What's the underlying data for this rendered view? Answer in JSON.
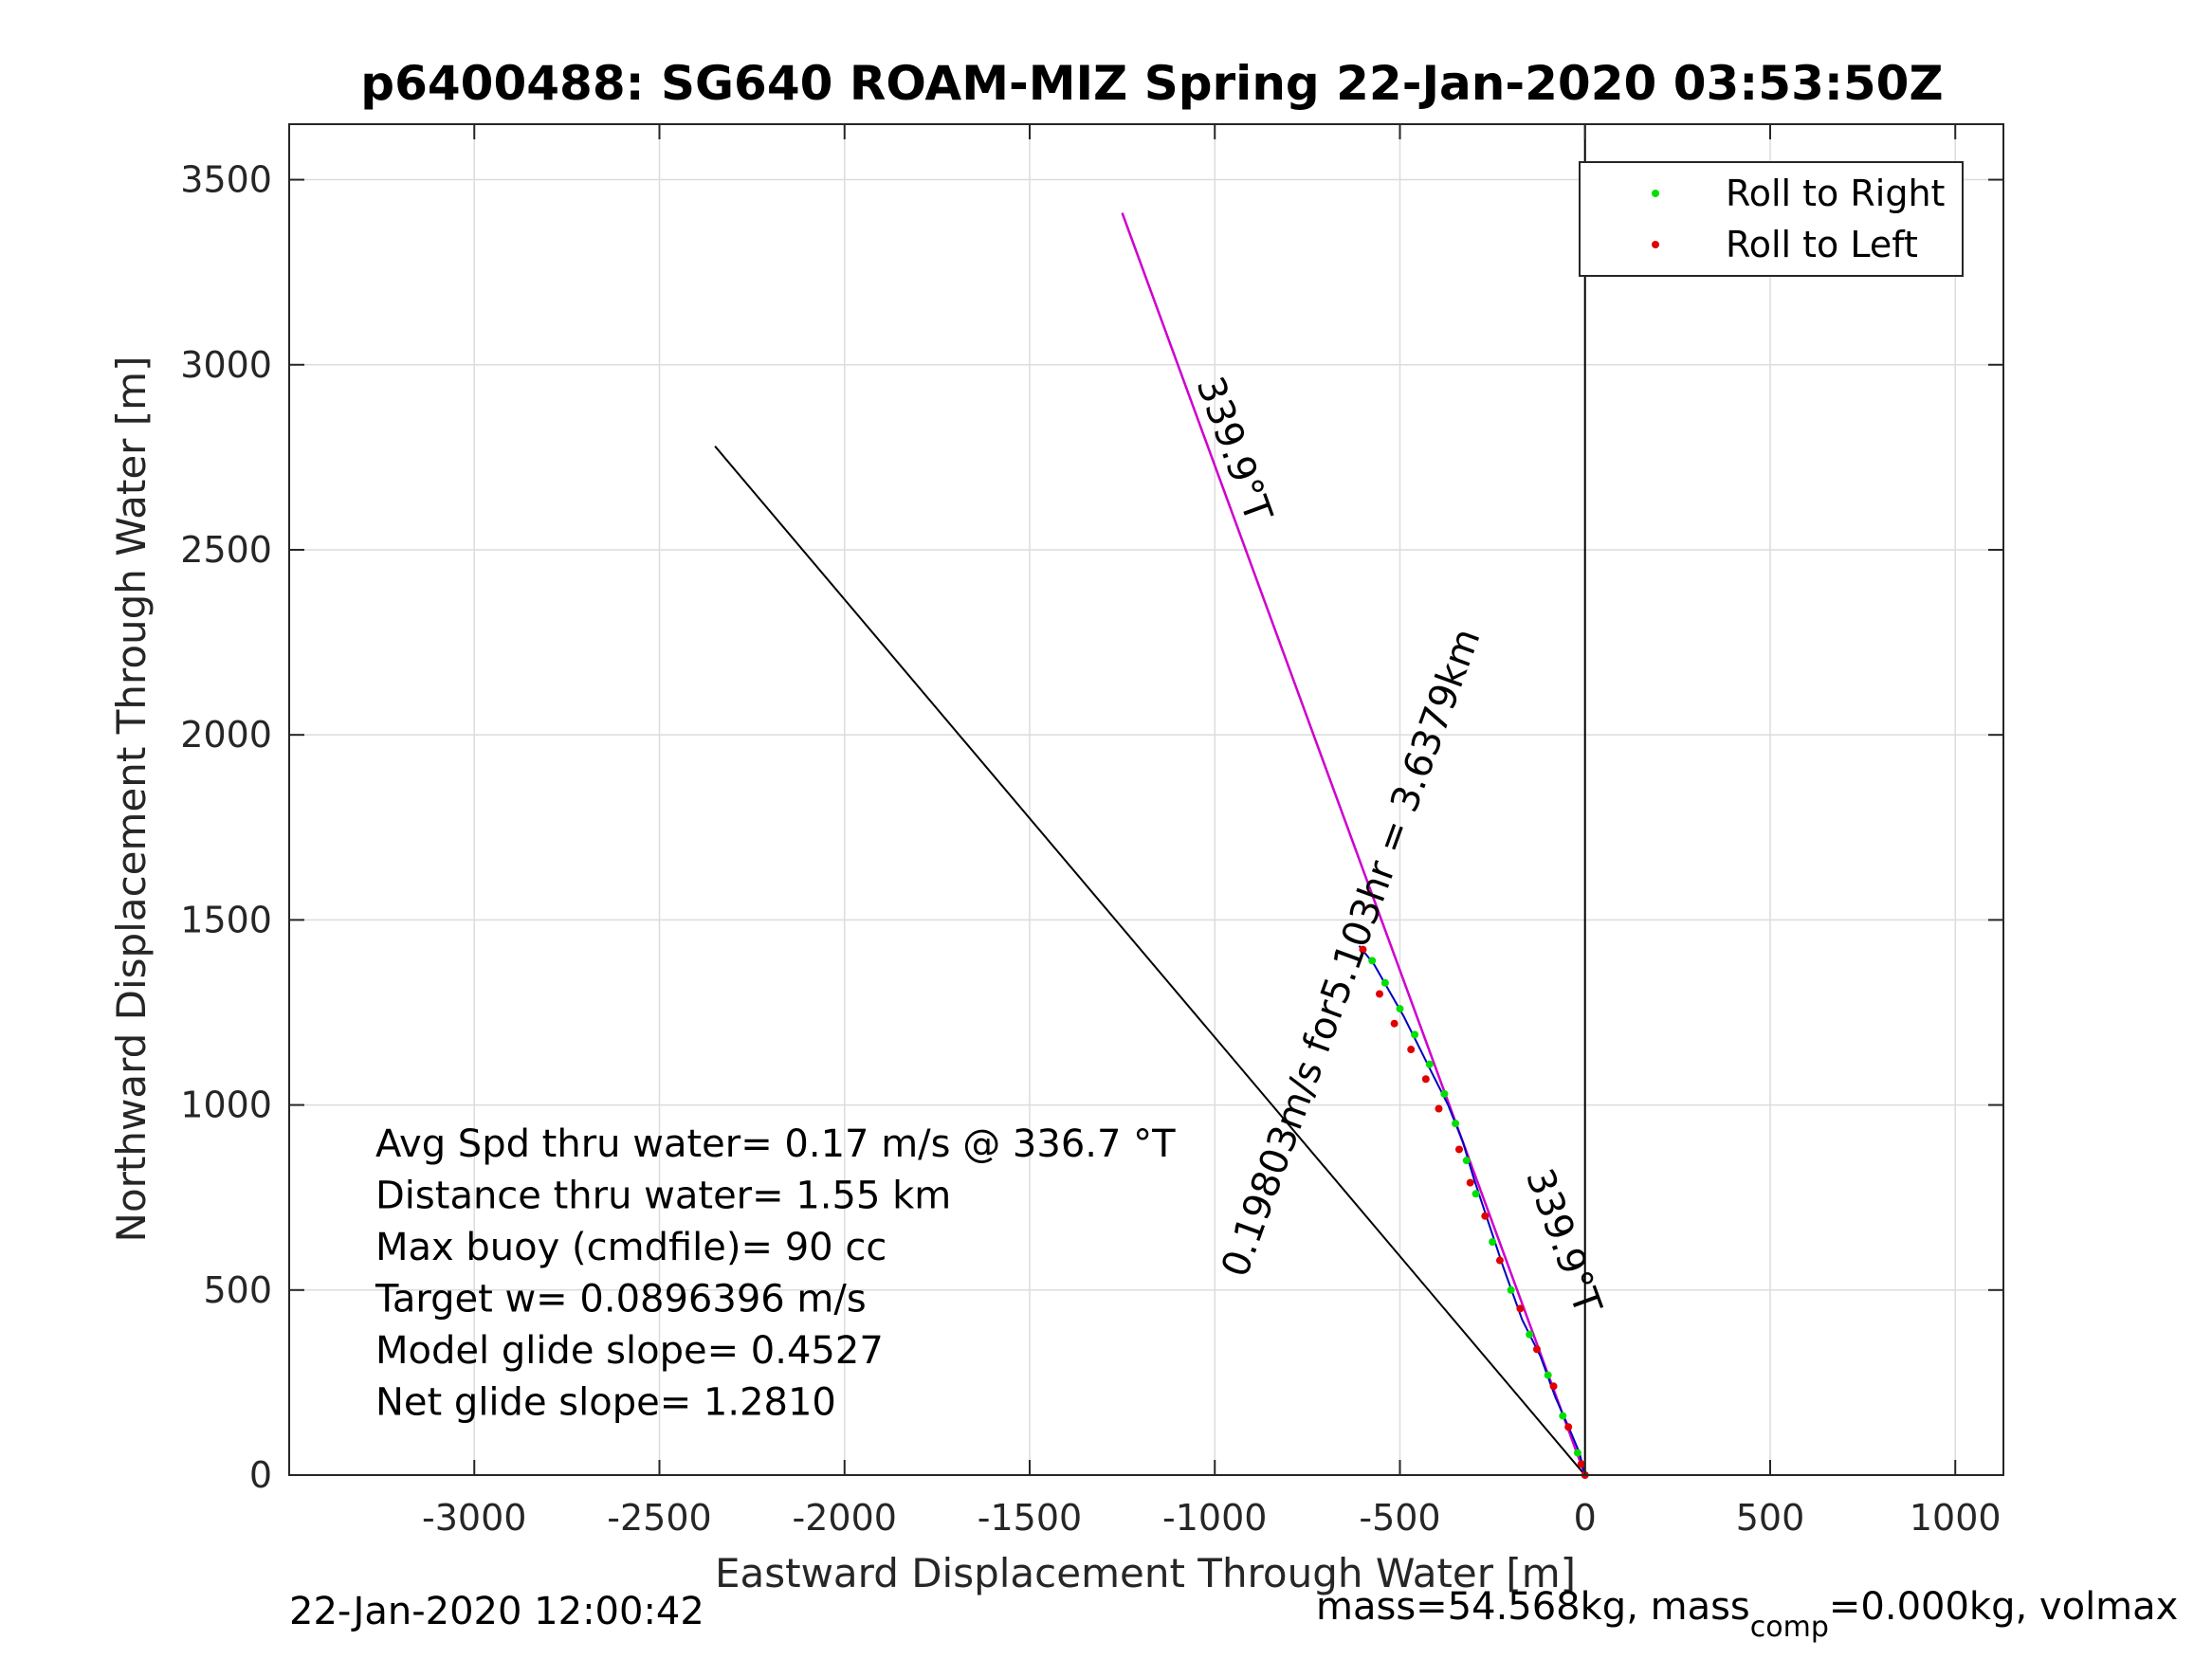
{
  "chart_data": {
    "type": "line",
    "title": "p6400488: SG640 ROAM-MIZ Spring 22-Jan-2020 03:53:50Z",
    "xlabel": "Eastward Displacement Through Water [m]",
    "ylabel": "Northward Displacement Through Water [m]",
    "xlim": [
      -3500,
      1130
    ],
    "ylim": [
      0,
      3650
    ],
    "xticks": [
      -3000,
      -2500,
      -2000,
      -1500,
      -1000,
      -500,
      0,
      500,
      1000
    ],
    "yticks": [
      0,
      500,
      1000,
      1500,
      2000,
      2500,
      3000,
      3500
    ],
    "grid": true,
    "legend_position": "top-right",
    "legend": [
      {
        "label": "Roll to Right",
        "color": "#00e000"
      },
      {
        "label": "Roll to Left",
        "color": "#e00000"
      }
    ],
    "lines": [
      {
        "color": "#000000",
        "x": [
          0,
          0
        ],
        "y": [
          0,
          3650
        ]
      },
      {
        "color": "#000000",
        "x": [
          0,
          -2350
        ],
        "y": [
          0,
          2780
        ]
      },
      {
        "color": "#000000",
        "x": [
          0,
          -1250
        ],
        "y": [
          0,
          3410
        ]
      },
      {
        "color": "#d000d0",
        "x": [
          0,
          -1250
        ],
        "y": [
          0,
          3410
        ]
      },
      {
        "color": "#0000c0",
        "x": [
          0,
          -15,
          -40,
          -80,
          -120,
          -170,
          -220,
          -260,
          -300,
          -330,
          -370,
          -410,
          -450,
          -490,
          -530,
          -570,
          -610
        ],
        "y": [
          0,
          60,
          120,
          210,
          320,
          420,
          560,
          680,
          800,
          900,
          1000,
          1080,
          1160,
          1240,
          1310,
          1380,
          1430
        ]
      }
    ],
    "roll_right": {
      "x": [
        -20,
        -60,
        -100,
        -150,
        -200,
        -250,
        -295,
        -320,
        -350,
        -380,
        -420,
        -460,
        -500,
        -540,
        -575
      ],
      "y": [
        60,
        160,
        270,
        380,
        500,
        630,
        760,
        850,
        950,
        1030,
        1110,
        1190,
        1260,
        1330,
        1390
      ]
    },
    "roll_left": {
      "x": [
        0,
        -10,
        -45,
        -85,
        -130,
        -175,
        -230,
        -270,
        -310,
        -340,
        -395,
        -430,
        -470,
        -515,
        -555,
        -600
      ],
      "y": [
        0,
        30,
        130,
        240,
        340,
        450,
        580,
        700,
        790,
        880,
        990,
        1070,
        1150,
        1220,
        1300,
        1420
      ]
    },
    "line_labels": [
      {
        "text": "339.9°T",
        "x": -980,
        "y": 2760,
        "angle": 70
      },
      {
        "text": "0.19803m/s for5.103hr = 3.6379km",
        "x": -600,
        "y": 1400,
        "angle": -70
      },
      {
        "text": "339.9°T",
        "x": -90,
        "y": 620,
        "angle": 70
      }
    ],
    "annotations": [
      "Avg Spd thru water=  0.17 m/s @ 336.7 °T",
      "Distance thru water=  1.55 km",
      "Max buoy (cmdfile)= 90 cc",
      "Target w= 0.0896396 m/s",
      "Model glide slope= 0.4527",
      "Net glide slope= 1.2810"
    ]
  },
  "footer": {
    "left": "22-Jan-2020 12:00:42",
    "right_prefix": "mass=54.568kg, mass",
    "right_sub": "comp",
    "right_suffix": "=0.000kg, volmax"
  }
}
